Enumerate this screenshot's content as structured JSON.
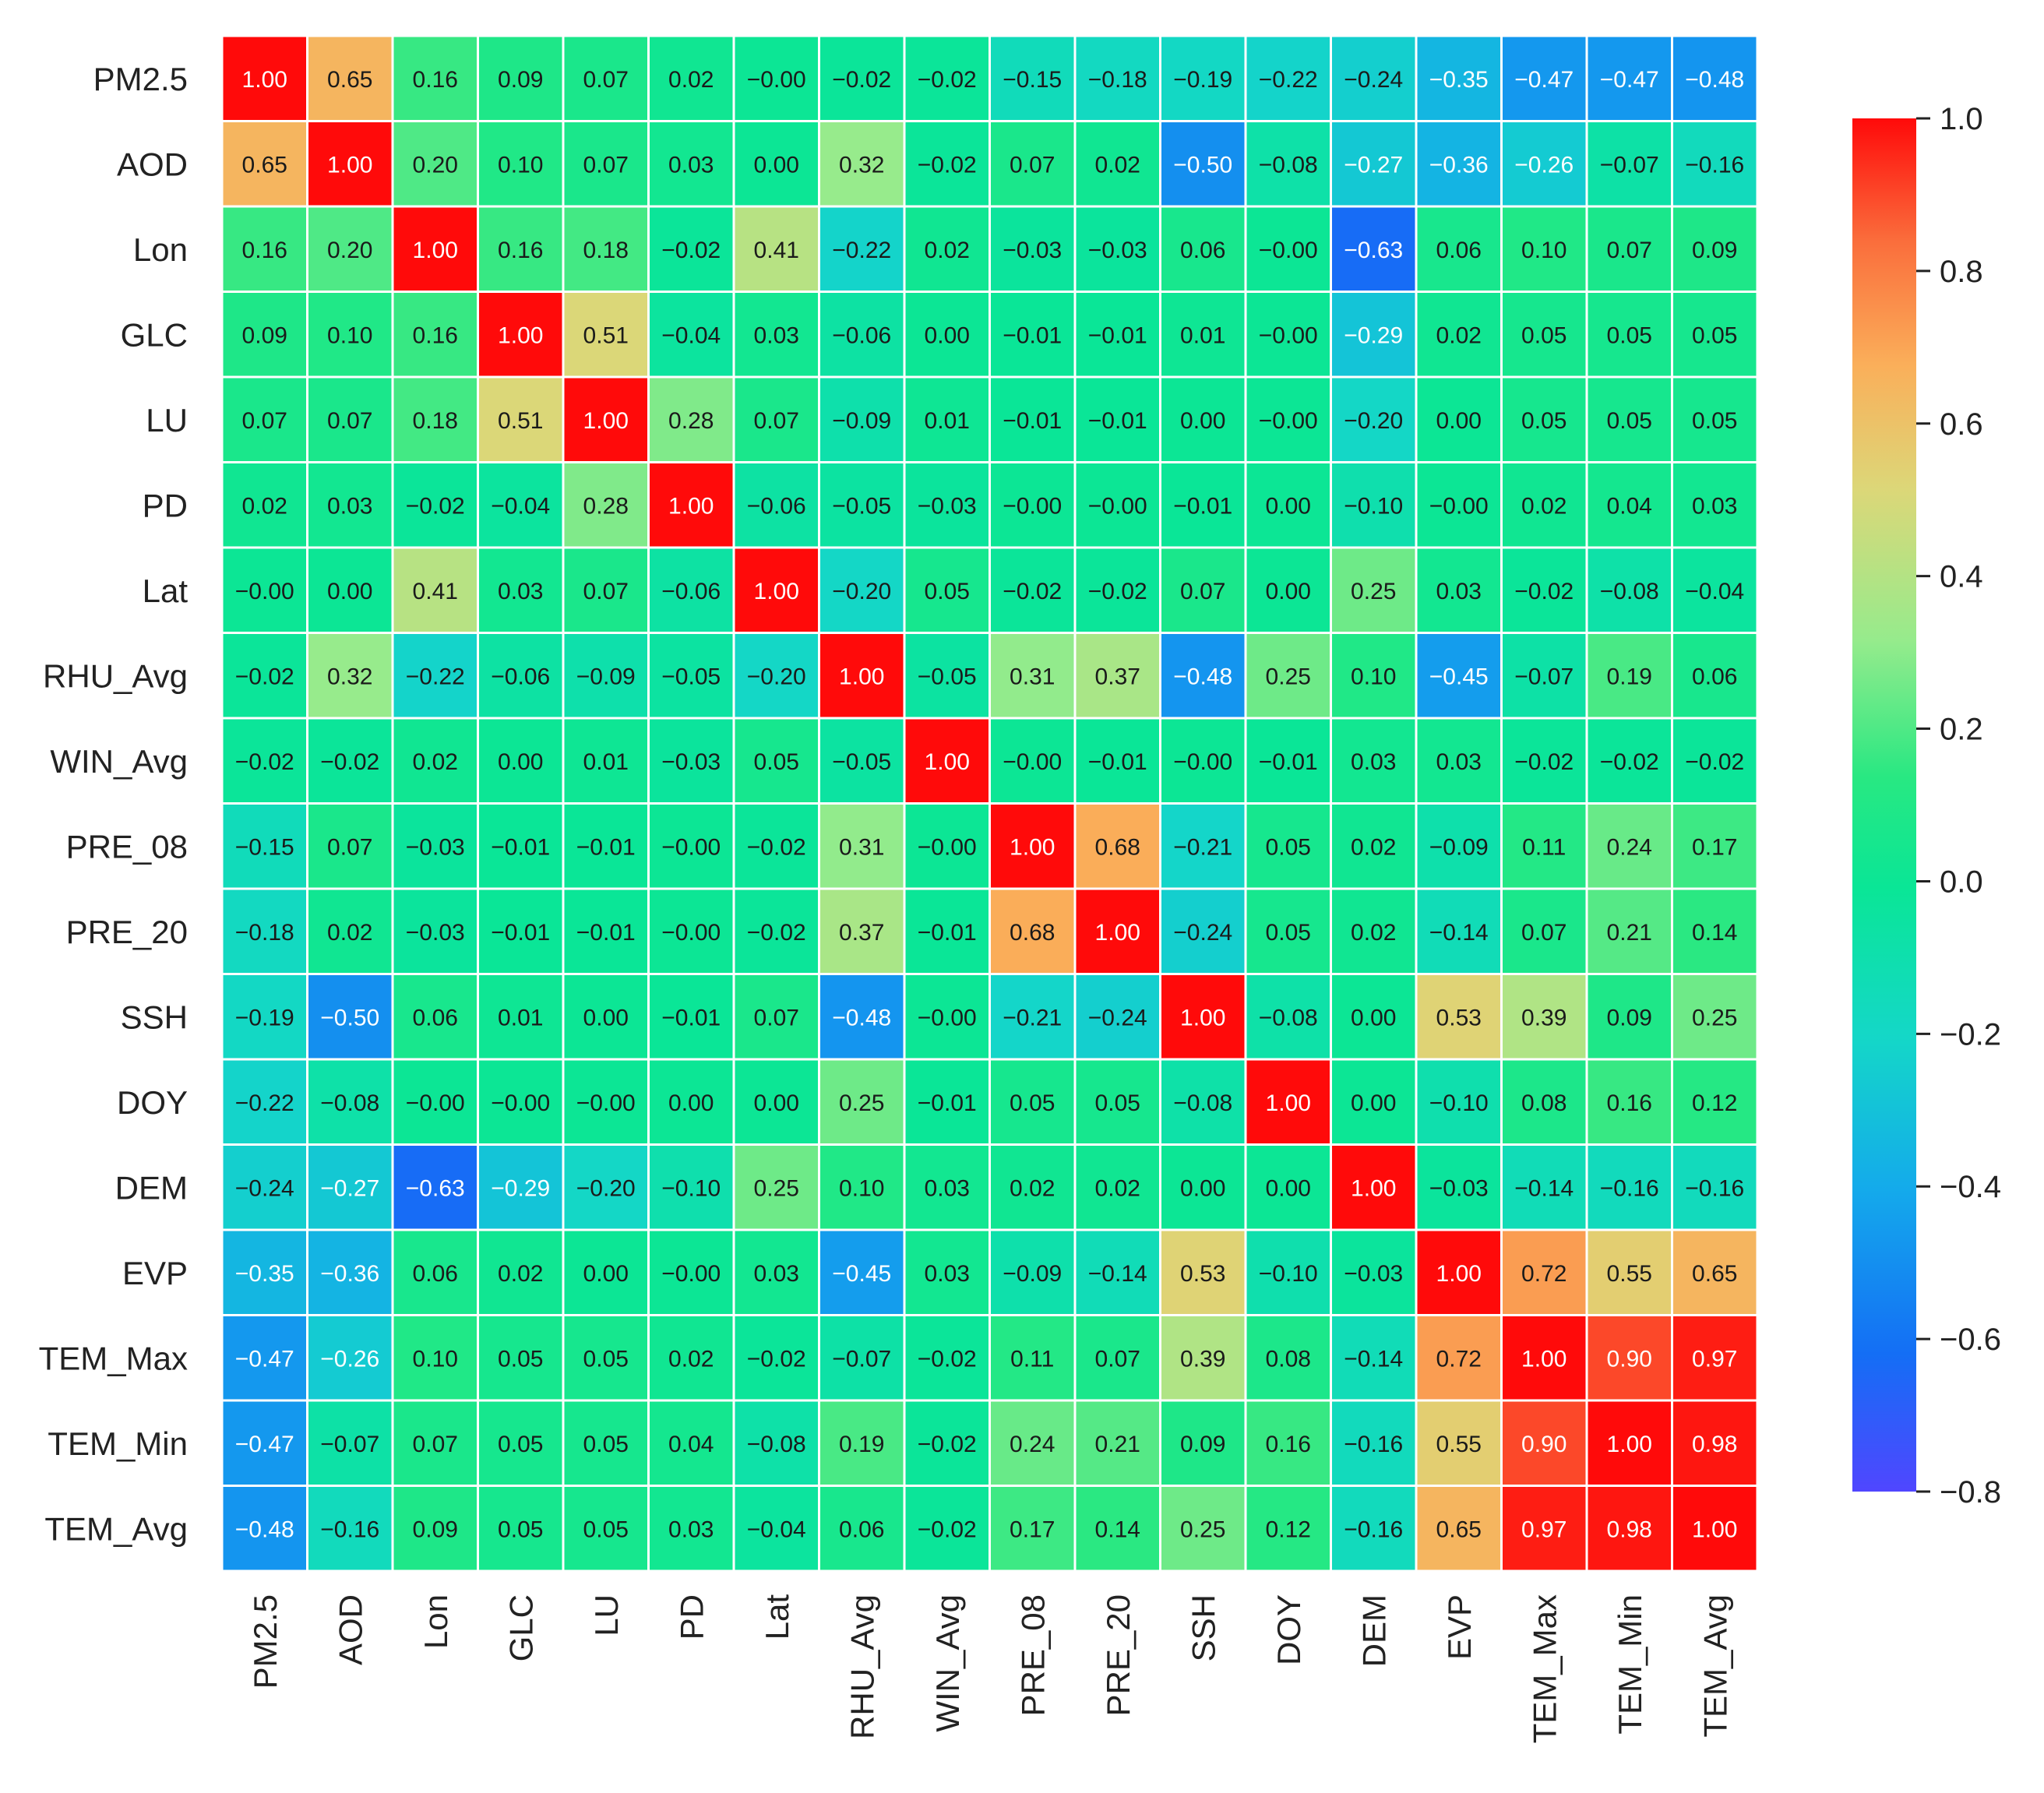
{
  "chart_data": {
    "type": "heatmap",
    "title": "",
    "variables": [
      "PM2.5",
      "AOD",
      "Lon",
      "GLC",
      "LU",
      "PD",
      "Lat",
      "RHU_Avg",
      "WIN_Avg",
      "PRE_08",
      "PRE_20",
      "SSH",
      "DOY",
      "DEM",
      "EVP",
      "TEM_Max",
      "TEM_Min",
      "TEM_Avg"
    ],
    "matrix": [
      [
        1.0,
        0.65,
        0.16,
        0.09,
        0.07,
        0.02,
        -0.0,
        -0.02,
        -0.02,
        -0.15,
        -0.18,
        -0.19,
        -0.22,
        -0.24,
        -0.35,
        -0.47,
        -0.47,
        -0.48
      ],
      [
        0.65,
        1.0,
        0.2,
        0.1,
        0.07,
        0.03,
        0.0,
        0.32,
        -0.02,
        0.07,
        0.02,
        -0.5,
        -0.08,
        -0.27,
        -0.36,
        -0.26,
        -0.07,
        -0.16
      ],
      [
        0.16,
        0.2,
        1.0,
        0.16,
        0.18,
        -0.02,
        0.41,
        -0.22,
        0.02,
        -0.03,
        -0.03,
        0.06,
        -0.0,
        -0.63,
        0.06,
        0.1,
        0.07,
        0.09
      ],
      [
        0.09,
        0.1,
        0.16,
        1.0,
        0.51,
        -0.04,
        0.03,
        -0.06,
        0.0,
        -0.01,
        -0.01,
        0.01,
        -0.0,
        -0.29,
        0.02,
        0.05,
        0.05,
        0.05
      ],
      [
        0.07,
        0.07,
        0.18,
        0.51,
        1.0,
        0.28,
        0.07,
        -0.09,
        0.01,
        -0.01,
        -0.01,
        0.0,
        -0.0,
        -0.2,
        0.0,
        0.05,
        0.05,
        0.05
      ],
      [
        0.02,
        0.03,
        -0.02,
        -0.04,
        0.28,
        1.0,
        -0.06,
        -0.05,
        -0.03,
        -0.0,
        -0.0,
        -0.01,
        0.0,
        -0.1,
        -0.0,
        0.02,
        0.04,
        0.03
      ],
      [
        -0.0,
        0.0,
        0.41,
        0.03,
        0.07,
        -0.06,
        1.0,
        -0.2,
        0.05,
        -0.02,
        -0.02,
        0.07,
        0.0,
        0.25,
        0.03,
        -0.02,
        -0.08,
        -0.04
      ],
      [
        -0.02,
        0.32,
        -0.22,
        -0.06,
        -0.09,
        -0.05,
        -0.2,
        1.0,
        -0.05,
        0.31,
        0.37,
        -0.48,
        0.25,
        0.1,
        -0.45,
        -0.07,
        0.19,
        0.06
      ],
      [
        -0.02,
        -0.02,
        0.02,
        0.0,
        0.01,
        -0.03,
        0.05,
        -0.05,
        1.0,
        -0.0,
        -0.01,
        -0.0,
        -0.01,
        0.03,
        0.03,
        -0.02,
        -0.02,
        -0.02
      ],
      [
        -0.15,
        0.07,
        -0.03,
        -0.01,
        -0.01,
        -0.0,
        -0.02,
        0.31,
        -0.0,
        1.0,
        0.68,
        -0.21,
        0.05,
        0.02,
        -0.09,
        0.11,
        0.24,
        0.17
      ],
      [
        -0.18,
        0.02,
        -0.03,
        -0.01,
        -0.01,
        -0.0,
        -0.02,
        0.37,
        -0.01,
        0.68,
        1.0,
        -0.24,
        0.05,
        0.02,
        -0.14,
        0.07,
        0.21,
        0.14
      ],
      [
        -0.19,
        -0.5,
        0.06,
        0.01,
        0.0,
        -0.01,
        0.07,
        -0.48,
        -0.0,
        -0.21,
        -0.24,
        1.0,
        -0.08,
        0.0,
        0.53,
        0.39,
        0.09,
        0.25
      ],
      [
        -0.22,
        -0.08,
        -0.0,
        -0.0,
        -0.0,
        0.0,
        0.0,
        0.25,
        -0.01,
        0.05,
        0.05,
        -0.08,
        1.0,
        0.0,
        -0.1,
        0.08,
        0.16,
        0.12
      ],
      [
        -0.24,
        -0.27,
        -0.63,
        -0.29,
        -0.2,
        -0.1,
        0.25,
        0.1,
        0.03,
        0.02,
        0.02,
        0.0,
        0.0,
        1.0,
        -0.03,
        -0.14,
        -0.16,
        -0.16
      ],
      [
        -0.35,
        -0.36,
        0.06,
        0.02,
        0.0,
        -0.0,
        0.03,
        -0.45,
        0.03,
        -0.09,
        -0.14,
        0.53,
        -0.1,
        -0.03,
        1.0,
        0.72,
        0.55,
        0.65
      ],
      [
        -0.47,
        -0.26,
        0.1,
        0.05,
        0.05,
        0.02,
        -0.02,
        -0.07,
        -0.02,
        0.11,
        0.07,
        0.39,
        0.08,
        -0.14,
        0.72,
        1.0,
        0.9,
        0.97
      ],
      [
        -0.47,
        -0.07,
        0.07,
        0.05,
        0.05,
        0.04,
        -0.08,
        0.19,
        -0.02,
        0.24,
        0.21,
        0.09,
        0.16,
        -0.16,
        0.55,
        0.9,
        1.0,
        0.98
      ],
      [
        -0.48,
        -0.16,
        0.09,
        0.05,
        0.05,
        0.03,
        -0.04,
        0.06,
        -0.02,
        0.17,
        0.14,
        0.25,
        0.12,
        -0.16,
        0.65,
        0.97,
        0.98,
        1.0
      ]
    ],
    "colorbar": {
      "vmin": -0.8,
      "vmax": 1.0,
      "colormap": "rainbow",
      "ticks": [
        1.0,
        0.8,
        0.6,
        0.4,
        0.2,
        0.0,
        -0.2,
        -0.4,
        -0.6,
        -0.8
      ],
      "tick_labels": [
        "1.0",
        "0.8",
        "0.6",
        "0.4",
        "0.2",
        "0.0",
        "−0.2",
        "−0.4",
        "−0.6",
        "−0.8"
      ]
    },
    "legend_placement": "right",
    "grid": true,
    "grid_color": "#ffffff",
    "xlabel": "",
    "ylabel": ""
  }
}
